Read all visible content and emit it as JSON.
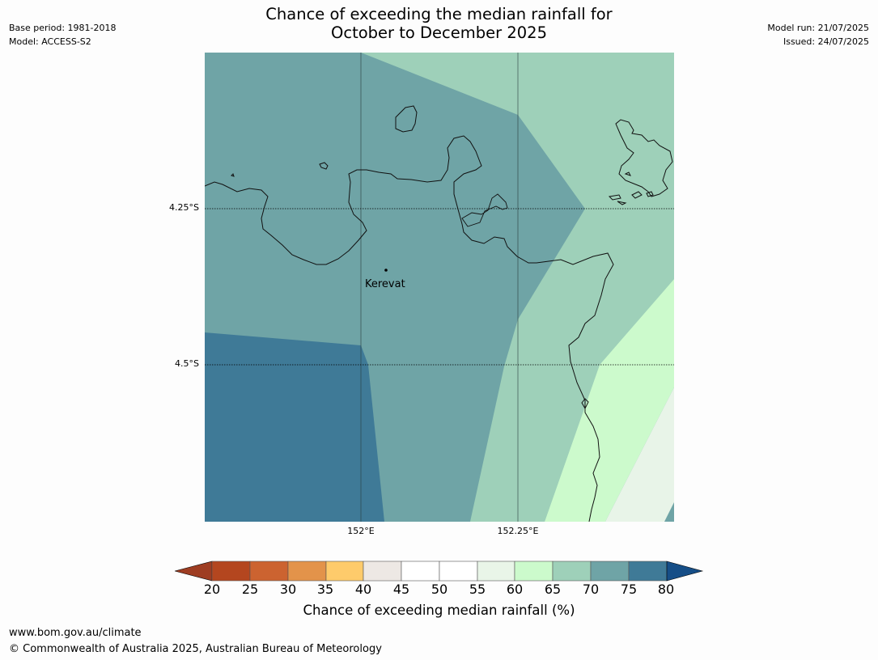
{
  "header": {
    "title_line1": "Chance of exceeding the median rainfall for",
    "title_line2": "October to December 2025",
    "base_period": "Base period: 1981-2018",
    "model": "Model: ACCESS-S2",
    "model_run": "Model run: 21/07/2025",
    "issued": "Issued: 24/07/2025"
  },
  "map": {
    "place_label": "Kerevat",
    "lat_labels": [
      "4.25°S",
      "4.5°S"
    ],
    "lon_labels": [
      "152°E",
      "152.25°E"
    ],
    "category_colors": {
      "70-75": "#6fa4a6",
      "75-80": "#3f7a97",
      "65-70": "#9ed0b9",
      "60-65": "#ccfacc",
      "55-60": "#e8f4e8"
    }
  },
  "colorbar": {
    "ticks": [
      "20",
      "25",
      "30",
      "35",
      "40",
      "45",
      "50",
      "55",
      "60",
      "65",
      "70",
      "75",
      "80"
    ],
    "colors": [
      "#9e3d22",
      "#b4461f",
      "#cc6330",
      "#e3934a",
      "#fecb6b",
      "#ede8e4",
      "#ffffff",
      "#ffffff",
      "#e9f5e8",
      "#ccfacc",
      "#9ed0b9",
      "#6fa4a6",
      "#3f7a97",
      "#164e87"
    ],
    "label": "Chance of exceeding median rainfall (%)"
  },
  "footer": {
    "url": "www.bom.gov.au/climate",
    "copyright": "© Commonwealth of Australia 2025, Australian Bureau of Meteorology"
  }
}
